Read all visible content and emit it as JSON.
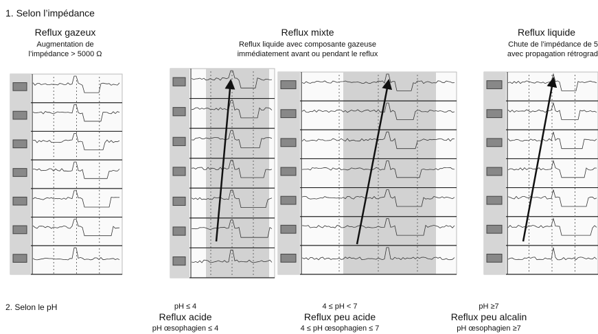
{
  "impedance": {
    "title": "1. Selon l’impédance",
    "panels": [
      {
        "title": "Reflux gazeux",
        "lines": [
          "Augmentation de",
          "l’impédance > 5000 Ω"
        ]
      },
      {
        "title": "Reflux mixte",
        "lines": [
          "Reflux liquide avec composante gazeuse",
          "immédiatement avant ou pendant le reflux"
        ]
      },
      {
        "title": "Reflux liquide",
        "lines": [
          "Chute de l’impédance de 5",
          "avec propagation rétrograd"
        ]
      }
    ]
  },
  "ph": {
    "title": "2. Selon le pH",
    "columns": [
      {
        "range": "pH ≤ 4",
        "title": "Reflux acide",
        "subtitle": "pH œsophagien ≤ 4"
      },
      {
        "range": "4 ≤ pH < 7",
        "title": "Reflux peu acide",
        "subtitle": "4 ≤ pH œsophagien ≤ 7"
      },
      {
        "range": "pH ≥7",
        "title": "Reflux peu alcalin",
        "subtitle": "pH œsophagien ≥7"
      }
    ]
  }
}
